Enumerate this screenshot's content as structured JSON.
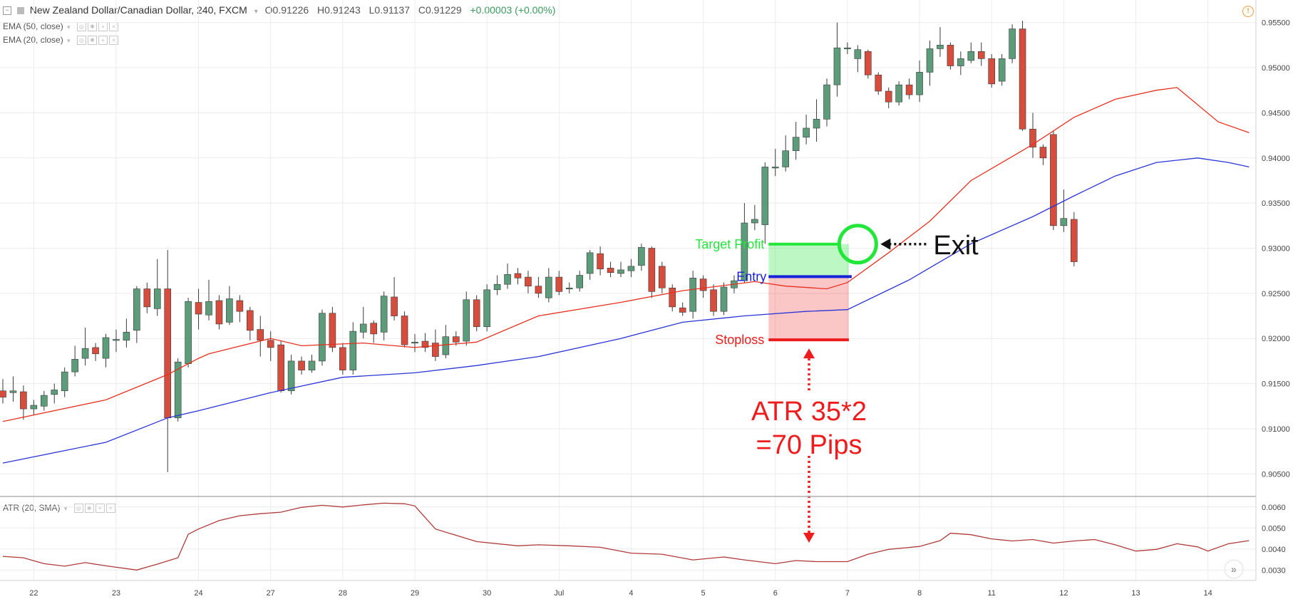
{
  "header": {
    "symbol": "New Zealand Dollar/Canadian Dollar, 240, FXCM",
    "open": "O0.91226",
    "high": "H0.91243",
    "low": "L0.91137",
    "close": "C0.91229",
    "change": "+0.00003 (+0.00%)",
    "indicators": [
      "EMA (50, close)",
      "EMA (20, close)"
    ],
    "sub_indicator": "ATR (20, SMA)"
  },
  "colors": {
    "bull": "#5d9c7a",
    "bear": "#d64c3d",
    "ema20": "#e8301f",
    "ema50": "#2a35d8",
    "atr": "#b03a3a",
    "target": "#22e63a",
    "entry": "#1522d8",
    "stop": "#ee1c1c",
    "annotation": "#ee1c1c"
  },
  "annotations": {
    "target_label": "Target Profit",
    "entry_label": "Entry",
    "stop_label": "Stoploss",
    "atr_line1": "ATR 35*2",
    "atr_line2": "=70 Pips",
    "exit_label": "Exit"
  },
  "chart_data": {
    "type": "candlestick",
    "price_axis": {
      "ticks": [
        0.955,
        0.95,
        0.945,
        0.94,
        0.935,
        0.93,
        0.925,
        0.92,
        0.915,
        0.91,
        0.905
      ],
      "range": [
        0.9025,
        0.9575
      ]
    },
    "atr_axis": {
      "ticks": [
        0.006,
        0.005,
        0.004,
        0.003
      ],
      "range": [
        0.0025,
        0.0065
      ]
    },
    "x_labels": [
      {
        "i": 3,
        "label": "22"
      },
      {
        "i": 11,
        "label": "23"
      },
      {
        "i": 19,
        "label": "24"
      },
      {
        "i": 26,
        "label": "27"
      },
      {
        "i": 33,
        "label": "28"
      },
      {
        "i": 40,
        "label": "29"
      },
      {
        "i": 47,
        "label": "30"
      },
      {
        "i": 54,
        "label": "Jul"
      },
      {
        "i": 61,
        "label": "4"
      },
      {
        "i": 68,
        "label": "5"
      },
      {
        "i": 75,
        "label": "6"
      },
      {
        "i": 82,
        "label": "7"
      },
      {
        "i": 89,
        "label": "8"
      },
      {
        "i": 96,
        "label": "11"
      },
      {
        "i": 103,
        "label": "12"
      },
      {
        "i": 110,
        "label": "13"
      },
      {
        "i": 117,
        "label": "14"
      }
    ],
    "candles": [
      [
        0.9142,
        0.9135,
        0.9155,
        0.9128
      ],
      [
        0.914,
        0.9142,
        0.9158,
        0.913
      ],
      [
        0.9141,
        0.9122,
        0.9148,
        0.911
      ],
      [
        0.9122,
        0.9126,
        0.9132,
        0.9115
      ],
      [
        0.9125,
        0.9137,
        0.9142,
        0.912
      ],
      [
        0.9138,
        0.9143,
        0.915,
        0.9128
      ],
      [
        0.9142,
        0.9163,
        0.9168,
        0.9135
      ],
      [
        0.9163,
        0.9177,
        0.9192,
        0.9158
      ],
      [
        0.9178,
        0.9189,
        0.9212,
        0.917
      ],
      [
        0.919,
        0.9183,
        0.9195,
        0.9175
      ],
      [
        0.9178,
        0.9201,
        0.9205,
        0.9168
      ],
      [
        0.9199,
        0.9199,
        0.921,
        0.9185
      ],
      [
        0.9198,
        0.9207,
        0.9222,
        0.919
      ],
      [
        0.9209,
        0.9255,
        0.9258,
        0.9195
      ],
      [
        0.9255,
        0.9235,
        0.9262,
        0.9228
      ],
      [
        0.9233,
        0.9255,
        0.9288,
        0.9225
      ],
      [
        0.9255,
        0.9112,
        0.9298,
        0.9052
      ],
      [
        0.9112,
        0.9174,
        0.9178,
        0.9108
      ],
      [
        0.9172,
        0.9241,
        0.9245,
        0.9168
      ],
      [
        0.924,
        0.9227,
        0.9255,
        0.921
      ],
      [
        0.9226,
        0.9241,
        0.9265,
        0.922
      ],
      [
        0.9242,
        0.9216,
        0.9248,
        0.921
      ],
      [
        0.9218,
        0.9244,
        0.9258,
        0.9215
      ],
      [
        0.9242,
        0.923,
        0.9248,
        0.9218
      ],
      [
        0.9231,
        0.9209,
        0.9235,
        0.9198
      ],
      [
        0.921,
        0.9198,
        0.9225,
        0.918
      ],
      [
        0.9198,
        0.919,
        0.9208,
        0.9175
      ],
      [
        0.9193,
        0.9142,
        0.9198,
        0.914
      ],
      [
        0.9142,
        0.9175,
        0.9182,
        0.9138
      ],
      [
        0.9175,
        0.9165,
        0.918,
        0.916
      ],
      [
        0.9165,
        0.9175,
        0.9182,
        0.9162
      ],
      [
        0.9175,
        0.9228,
        0.9232,
        0.917
      ],
      [
        0.9228,
        0.919,
        0.9235,
        0.9185
      ],
      [
        0.919,
        0.9165,
        0.9195,
        0.916
      ],
      [
        0.9165,
        0.9208,
        0.9218,
        0.916
      ],
      [
        0.9207,
        0.9216,
        0.9235,
        0.92
      ],
      [
        0.9217,
        0.9205,
        0.922,
        0.9195
      ],
      [
        0.9207,
        0.9247,
        0.9252,
        0.9198
      ],
      [
        0.9246,
        0.9225,
        0.9268,
        0.922
      ],
      [
        0.9225,
        0.9193,
        0.923,
        0.919
      ],
      [
        0.9195,
        0.9196,
        0.9205,
        0.9185
      ],
      [
        0.9197,
        0.919,
        0.9206,
        0.9185
      ],
      [
        0.9195,
        0.918,
        0.921,
        0.9175
      ],
      [
        0.9182,
        0.9202,
        0.9215,
        0.9178
      ],
      [
        0.9202,
        0.9196,
        0.9208,
        0.9192
      ],
      [
        0.9197,
        0.9243,
        0.9252,
        0.9192
      ],
      [
        0.9243,
        0.9213,
        0.9248,
        0.9208
      ],
      [
        0.9213,
        0.9254,
        0.926,
        0.9208
      ],
      [
        0.9254,
        0.926,
        0.927,
        0.9248
      ],
      [
        0.926,
        0.9271,
        0.9283,
        0.9255
      ],
      [
        0.9272,
        0.9267,
        0.9278,
        0.926
      ],
      [
        0.9268,
        0.9258,
        0.9275,
        0.925
      ],
      [
        0.9258,
        0.925,
        0.9268,
        0.9245
      ],
      [
        0.9245,
        0.9268,
        0.9278,
        0.924
      ],
      [
        0.9268,
        0.9252,
        0.9275,
        0.9248
      ],
      [
        0.9255,
        0.9256,
        0.9262,
        0.925
      ],
      [
        0.9256,
        0.927,
        0.9275,
        0.9252
      ],
      [
        0.9272,
        0.9295,
        0.9298,
        0.9265
      ],
      [
        0.9294,
        0.9277,
        0.9302,
        0.927
      ],
      [
        0.9278,
        0.9273,
        0.9285,
        0.9268
      ],
      [
        0.9272,
        0.9276,
        0.9285,
        0.9268
      ],
      [
        0.9275,
        0.928,
        0.9288,
        0.9268
      ],
      [
        0.9281,
        0.9301,
        0.9305,
        0.9275
      ],
      [
        0.93,
        0.9252,
        0.9302,
        0.9245
      ],
      [
        0.928,
        0.9256,
        0.9285,
        0.925
      ],
      [
        0.9256,
        0.9235,
        0.926,
        0.923
      ],
      [
        0.9234,
        0.9229,
        0.924,
        0.9225
      ],
      [
        0.923,
        0.9267,
        0.9275,
        0.9222
      ],
      [
        0.9266,
        0.9253,
        0.927,
        0.9245
      ],
      [
        0.9254,
        0.923,
        0.926,
        0.9225
      ],
      [
        0.923,
        0.9257,
        0.9262,
        0.9226
      ],
      [
        0.9256,
        0.9264,
        0.927,
        0.925
      ],
      [
        0.9264,
        0.9328,
        0.935,
        0.9262
      ],
      [
        0.9328,
        0.9332,
        0.9348,
        0.932
      ],
      [
        0.9326,
        0.939,
        0.9395,
        0.9305
      ],
      [
        0.939,
        0.939,
        0.941,
        0.938
      ],
      [
        0.939,
        0.9408,
        0.9425,
        0.9385
      ],
      [
        0.9408,
        0.9423,
        0.944,
        0.9398
      ],
      [
        0.9423,
        0.9433,
        0.9448,
        0.9415
      ],
      [
        0.9433,
        0.9443,
        0.9465,
        0.9418
      ],
      [
        0.9443,
        0.9481,
        0.9488,
        0.9435
      ],
      [
        0.9481,
        0.9522,
        0.955,
        0.9468
      ],
      [
        0.9521,
        0.9522,
        0.9528,
        0.9515
      ],
      [
        0.951,
        0.952,
        0.9525,
        0.9495
      ],
      [
        0.9518,
        0.9492,
        0.952,
        0.9488
      ],
      [
        0.9492,
        0.9474,
        0.9495,
        0.947
      ],
      [
        0.9474,
        0.9462,
        0.9478,
        0.9455
      ],
      [
        0.9462,
        0.9481,
        0.9485,
        0.9458
      ],
      [
        0.9481,
        0.947,
        0.9488,
        0.9465
      ],
      [
        0.947,
        0.9495,
        0.9508,
        0.9462
      ],
      [
        0.9495,
        0.9521,
        0.953,
        0.948
      ],
      [
        0.9521,
        0.9525,
        0.9545,
        0.9512
      ],
      [
        0.9525,
        0.9502,
        0.9528,
        0.9498
      ],
      [
        0.9502,
        0.951,
        0.9518,
        0.9492
      ],
      [
        0.9508,
        0.9518,
        0.9528,
        0.9505
      ],
      [
        0.9518,
        0.951,
        0.9528,
        0.9502
      ],
      [
        0.951,
        0.9482,
        0.9515,
        0.9478
      ],
      [
        0.9485,
        0.951,
        0.9515,
        0.948
      ],
      [
        0.951,
        0.9543,
        0.9548,
        0.9505
      ],
      [
        0.9543,
        0.9432,
        0.9552,
        0.943
      ],
      [
        0.9432,
        0.9412,
        0.945,
        0.94
      ],
      [
        0.9412,
        0.94,
        0.9415,
        0.9392
      ],
      [
        0.9426,
        0.9325,
        0.943,
        0.932
      ],
      [
        0.9325,
        0.9333,
        0.9365,
        0.9318
      ],
      [
        0.9332,
        0.9285,
        0.934,
        0.928
      ]
    ],
    "ema20": [
      [
        0,
        0.9108
      ],
      [
        10,
        0.9132
      ],
      [
        16,
        0.916
      ],
      [
        19,
        0.9178
      ],
      [
        20,
        0.9183
      ],
      [
        26,
        0.92
      ],
      [
        29,
        0.9192
      ],
      [
        35,
        0.9195
      ],
      [
        40,
        0.919
      ],
      [
        46,
        0.9196
      ],
      [
        52,
        0.9225
      ],
      [
        60,
        0.924
      ],
      [
        66,
        0.9253
      ],
      [
        73,
        0.9263
      ],
      [
        76,
        0.9258
      ],
      [
        80,
        0.9255
      ],
      [
        82,
        0.9262
      ],
      [
        86,
        0.9295
      ],
      [
        90,
        0.933
      ],
      [
        94,
        0.9375
      ],
      [
        100,
        0.9415
      ],
      [
        104,
        0.9445
      ],
      [
        108,
        0.9465
      ],
      [
        112,
        0.9475
      ],
      [
        114,
        0.9478
      ],
      [
        118,
        0.944
      ],
      [
        121,
        0.9428
      ]
    ],
    "ema50": [
      [
        0,
        0.9062
      ],
      [
        10,
        0.9085
      ],
      [
        16,
        0.9112
      ],
      [
        19,
        0.912
      ],
      [
        26,
        0.914
      ],
      [
        33,
        0.9157
      ],
      [
        40,
        0.9162
      ],
      [
        46,
        0.917
      ],
      [
        52,
        0.918
      ],
      [
        60,
        0.92
      ],
      [
        66,
        0.9218
      ],
      [
        72,
        0.9225
      ],
      [
        78,
        0.923
      ],
      [
        82,
        0.9232
      ],
      [
        88,
        0.9265
      ],
      [
        94,
        0.9305
      ],
      [
        100,
        0.9335
      ],
      [
        104,
        0.9358
      ],
      [
        108,
        0.938
      ],
      [
        112,
        0.9395
      ],
      [
        116,
        0.94
      ],
      [
        119,
        0.9395
      ],
      [
        121,
        0.939
      ]
    ],
    "atr": [
      [
        0,
        0.00365
      ],
      [
        2,
        0.00358
      ],
      [
        4,
        0.0033
      ],
      [
        6,
        0.00318
      ],
      [
        8,
        0.00335
      ],
      [
        10,
        0.0032
      ],
      [
        13,
        0.003
      ],
      [
        15,
        0.00328
      ],
      [
        17,
        0.00358
      ],
      [
        18,
        0.0047
      ],
      [
        19,
        0.00495
      ],
      [
        21,
        0.00535
      ],
      [
        23,
        0.00558
      ],
      [
        25,
        0.00568
      ],
      [
        27,
        0.00575
      ],
      [
        29,
        0.00598
      ],
      [
        31,
        0.00608
      ],
      [
        33,
        0.006
      ],
      [
        35,
        0.0061
      ],
      [
        37,
        0.00618
      ],
      [
        39,
        0.00615
      ],
      [
        40,
        0.00605
      ],
      [
        42,
        0.00495
      ],
      [
        46,
        0.00435
      ],
      [
        50,
        0.00415
      ],
      [
        52,
        0.0042
      ],
      [
        55,
        0.00415
      ],
      [
        58,
        0.00408
      ],
      [
        61,
        0.0038
      ],
      [
        64,
        0.00375
      ],
      [
        67,
        0.00348
      ],
      [
        70,
        0.00362
      ],
      [
        72,
        0.00348
      ],
      [
        75,
        0.0033
      ],
      [
        77,
        0.00345
      ],
      [
        79,
        0.0034
      ],
      [
        82,
        0.0034
      ],
      [
        84,
        0.00375
      ],
      [
        86,
        0.00398
      ],
      [
        89,
        0.00412
      ],
      [
        91,
        0.0044
      ],
      [
        92,
        0.00475
      ],
      [
        94,
        0.00468
      ],
      [
        96,
        0.00448
      ],
      [
        98,
        0.00438
      ],
      [
        100,
        0.00445
      ],
      [
        102,
        0.00428
      ],
      [
        104,
        0.00438
      ],
      [
        106,
        0.00445
      ],
      [
        108,
        0.0042
      ],
      [
        110,
        0.0039
      ],
      [
        112,
        0.00398
      ],
      [
        114,
        0.00425
      ],
      [
        116,
        0.0041
      ],
      [
        117,
        0.0039
      ],
      [
        119,
        0.00425
      ],
      [
        121,
        0.0044
      ]
    ],
    "trade": {
      "target": 0.93045,
      "entry": 0.92685,
      "stop": 0.91985,
      "start_index": 74,
      "end_index": 82,
      "exit_index": 83,
      "exit_price": 0.93045
    }
  }
}
